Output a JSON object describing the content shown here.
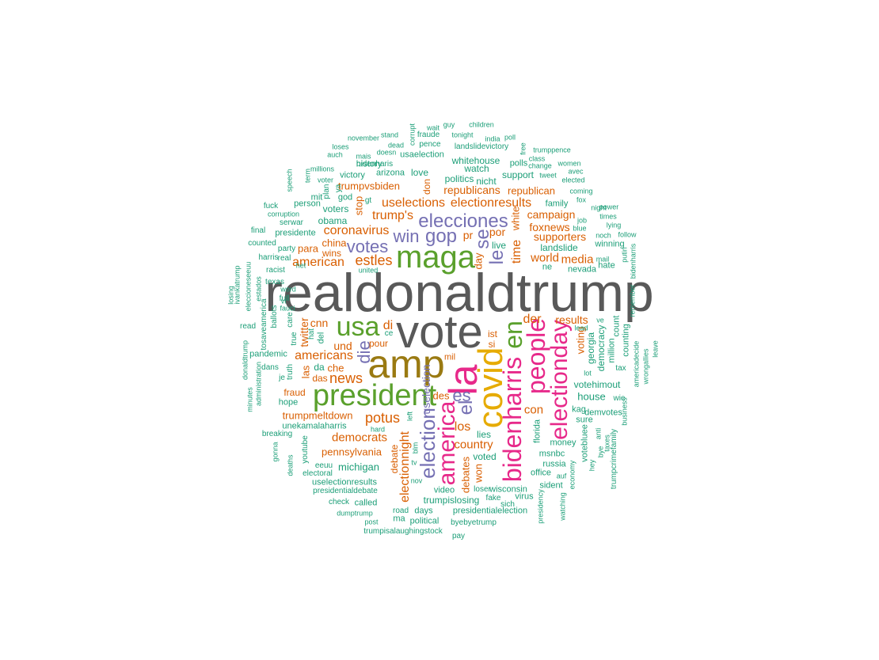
{
  "palette": {
    "gray": "#595959",
    "olive": "#9a7a12",
    "green": "#5aa02c",
    "pink": "#e7298a",
    "yellow": "#e6ab02",
    "purple": "#7570b3",
    "orange": "#d95f02",
    "teal": "#1b9e77"
  },
  "words": [
    {
      "text": "realdonaldtrump",
      "c": "gray"
    },
    {
      "text": "vote",
      "c": "gray"
    },
    {
      "text": "amp",
      "c": "olive"
    },
    {
      "text": "la",
      "c": "pink"
    },
    {
      "text": "president",
      "c": "green"
    },
    {
      "text": "maga",
      "c": "green"
    },
    {
      "text": "covid",
      "c": "yellow"
    },
    {
      "text": "bidenharris",
      "c": "pink"
    },
    {
      "text": "people",
      "c": "pink"
    },
    {
      "text": "electionday",
      "c": "pink"
    },
    {
      "text": "america",
      "c": "pink"
    },
    {
      "text": "en",
      "c": "green"
    },
    {
      "text": "usa",
      "c": "green"
    },
    {
      "text": "election",
      "c": "purple"
    },
    {
      "text": "elecciones",
      "c": "purple"
    },
    {
      "text": "gop",
      "c": "purple"
    },
    {
      "text": "se",
      "c": "purple"
    },
    {
      "text": "le",
      "c": "purple"
    },
    {
      "text": "el",
      "c": "purple"
    },
    {
      "text": "es",
      "c": "purple"
    },
    {
      "text": "votes",
      "c": "purple"
    },
    {
      "text": "win",
      "c": "purple"
    },
    {
      "text": "die",
      "c": "purple"
    },
    {
      "text": "news",
      "c": "orange"
    },
    {
      "text": "potus",
      "c": "orange"
    },
    {
      "text": "estles",
      "c": "orange"
    },
    {
      "text": "american",
      "c": "orange"
    },
    {
      "text": "americans",
      "c": "orange"
    },
    {
      "text": "coronavirus",
      "c": "orange"
    },
    {
      "text": "democrats",
      "c": "orange"
    },
    {
      "text": "country",
      "c": "orange"
    },
    {
      "text": "electionnight",
      "c": "orange"
    },
    {
      "text": "uselections",
      "c": "orange"
    },
    {
      "text": "electionresults",
      "c": "orange"
    },
    {
      "text": "trump's",
      "c": "orange"
    },
    {
      "text": "results",
      "c": "orange"
    },
    {
      "text": "time",
      "c": "orange"
    },
    {
      "text": "der",
      "c": "orange"
    },
    {
      "text": "los",
      "c": "orange"
    },
    {
      "text": "con",
      "c": "orange"
    },
    {
      "text": "world",
      "c": "orange"
    },
    {
      "text": "media",
      "c": "orange"
    },
    {
      "text": "campaign",
      "c": "orange"
    },
    {
      "text": "foxnews",
      "c": "orange"
    },
    {
      "text": "supporters",
      "c": "orange"
    },
    {
      "text": "republicans",
      "c": "orange"
    },
    {
      "text": "republican",
      "c": "orange"
    },
    {
      "text": "trumpvsbiden",
      "c": "orange"
    },
    {
      "text": "pennsylvania",
      "c": "orange"
    },
    {
      "text": "trumpmeltdown",
      "c": "orange"
    },
    {
      "text": "cnn",
      "c": "orange"
    },
    {
      "text": "twitter",
      "c": "orange"
    },
    {
      "text": "und",
      "c": "orange"
    },
    {
      "text": "che",
      "c": "orange"
    },
    {
      "text": "das",
      "c": "orange"
    },
    {
      "text": "las",
      "c": "orange"
    },
    {
      "text": "china",
      "c": "orange"
    },
    {
      "text": "wins",
      "c": "orange"
    },
    {
      "text": "para",
      "c": "orange"
    },
    {
      "text": "stop",
      "c": "orange"
    },
    {
      "text": "pr",
      "c": "orange"
    },
    {
      "text": "por",
      "c": "orange"
    },
    {
      "text": "di",
      "c": "orange"
    },
    {
      "text": "pour",
      "c": "orange"
    },
    {
      "text": "ist",
      "c": "orange"
    },
    {
      "text": "si",
      "c": "orange"
    },
    {
      "text": "day",
      "c": "orange"
    },
    {
      "text": "des",
      "c": "orange"
    },
    {
      "text": "debates",
      "c": "orange"
    },
    {
      "text": "debate",
      "c": "orange"
    },
    {
      "text": "won",
      "c": "orange"
    },
    {
      "text": "don",
      "c": "orange"
    },
    {
      "text": "fraud",
      "c": "orange"
    },
    {
      "text": "mil",
      "c": "orange"
    },
    {
      "text": "white",
      "c": "orange"
    },
    {
      "text": "voting",
      "c": "orange"
    },
    {
      "text": "uselection",
      "c": "purple"
    },
    {
      "text": "michigan",
      "c": "teal"
    },
    {
      "text": "voters",
      "c": "teal"
    },
    {
      "text": "obama",
      "c": "teal"
    },
    {
      "text": "live",
      "c": "teal"
    },
    {
      "text": "landslide",
      "c": "teal"
    },
    {
      "text": "nevada",
      "c": "teal"
    },
    {
      "text": "ne",
      "c": "teal"
    },
    {
      "text": "house",
      "c": "teal"
    },
    {
      "text": "votehimout",
      "c": "teal"
    },
    {
      "text": "georgia",
      "c": "teal"
    },
    {
      "text": "democracy",
      "c": "teal"
    },
    {
      "text": "count",
      "c": "teal"
    },
    {
      "text": "trumpislosing",
      "c": "teal"
    },
    {
      "text": "lies",
      "c": "teal"
    },
    {
      "text": "voted",
      "c": "teal"
    },
    {
      "text": "uselectionresults",
      "c": "teal"
    },
    {
      "text": "presidentialdebate",
      "c": "teal"
    },
    {
      "text": "presidentialelection",
      "c": "teal"
    },
    {
      "text": "trumpisalaughingstock",
      "c": "teal"
    },
    {
      "text": "byebyetrump",
      "c": "teal"
    },
    {
      "text": "unekamalaharris",
      "c": "teal"
    },
    {
      "text": "whitehouse",
      "c": "teal"
    },
    {
      "text": "politics",
      "c": "teal"
    },
    {
      "text": "watch",
      "c": "teal"
    },
    {
      "text": "nicht",
      "c": "teal"
    },
    {
      "text": "support",
      "c": "teal"
    },
    {
      "text": "polls",
      "c": "teal"
    },
    {
      "text": "love",
      "c": "teal"
    },
    {
      "text": "landslidevictory",
      "c": "teal"
    },
    {
      "text": "usaelection",
      "c": "teal"
    },
    {
      "text": "bidenharis",
      "c": "teal"
    },
    {
      "text": "arizona",
      "c": "teal"
    },
    {
      "text": "victory",
      "c": "teal"
    },
    {
      "text": "pence",
      "c": "teal"
    },
    {
      "text": "family",
      "c": "teal"
    },
    {
      "text": "winning",
      "c": "teal"
    },
    {
      "text": "hate",
      "c": "teal"
    },
    {
      "text": "russia",
      "c": "teal"
    },
    {
      "text": "msnbc",
      "c": "teal"
    },
    {
      "text": "florida",
      "c": "teal"
    },
    {
      "text": "kag",
      "c": "teal"
    },
    {
      "text": "wisconsin",
      "c": "teal"
    },
    {
      "text": "video",
      "c": "teal"
    },
    {
      "text": "called",
      "c": "teal"
    },
    {
      "text": "political",
      "c": "teal"
    },
    {
      "text": "pandemic",
      "c": "teal"
    },
    {
      "text": "presidente",
      "c": "teal"
    },
    {
      "text": "hope",
      "c": "teal"
    },
    {
      "text": "electoral",
      "c": "teal"
    },
    {
      "text": "eeuu",
      "c": "teal"
    },
    {
      "text": "millions",
      "c": "teal"
    },
    {
      "text": "person",
      "c": "teal"
    },
    {
      "text": "mit",
      "c": "teal"
    },
    {
      "text": "god",
      "c": "teal"
    },
    {
      "text": "party",
      "c": "teal"
    },
    {
      "text": "serwar",
      "c": "teal"
    },
    {
      "text": "corruption",
      "c": "teal"
    },
    {
      "text": "fuck",
      "c": "teal"
    },
    {
      "text": "final",
      "c": "teal"
    },
    {
      "text": "counted",
      "c": "teal"
    },
    {
      "text": "harris",
      "c": "teal"
    },
    {
      "text": "racist",
      "c": "teal"
    },
    {
      "text": "texas",
      "c": "teal"
    },
    {
      "text": "read",
      "c": "teal"
    },
    {
      "text": "tosaveamerica",
      "c": "teal"
    },
    {
      "text": "dans",
      "c": "teal"
    },
    {
      "text": "je",
      "c": "teal"
    },
    {
      "text": "breaking",
      "c": "teal"
    },
    {
      "text": "youtube",
      "c": "teal"
    },
    {
      "text": "deaths",
      "c": "teal"
    },
    {
      "text": "gonna",
      "c": "teal"
    },
    {
      "text": "check",
      "c": "teal"
    },
    {
      "text": "dumptrump",
      "c": "teal"
    },
    {
      "text": "post",
      "c": "teal"
    },
    {
      "text": "road",
      "c": "teal"
    },
    {
      "text": "days",
      "c": "teal"
    },
    {
      "text": "ma",
      "c": "teal"
    },
    {
      "text": "pay",
      "c": "teal"
    },
    {
      "text": "fake",
      "c": "teal"
    },
    {
      "text": "loser",
      "c": "teal"
    },
    {
      "text": "sich",
      "c": "teal"
    },
    {
      "text": "virus",
      "c": "teal"
    },
    {
      "text": "office",
      "c": "teal"
    },
    {
      "text": "sident",
      "c": "teal"
    },
    {
      "text": "money",
      "c": "teal"
    },
    {
      "text": "votebluee",
      "c": "teal"
    },
    {
      "text": "trumpcrimefamily",
      "c": "teal"
    },
    {
      "text": "business",
      "c": "teal"
    },
    {
      "text": "wie",
      "c": "teal"
    },
    {
      "text": "americadecide",
      "c": "teal"
    },
    {
      "text": "wrongallies",
      "c": "teal"
    },
    {
      "text": "leave",
      "c": "teal"
    },
    {
      "text": "counting",
      "c": "teal"
    },
    {
      "text": "million",
      "c": "teal"
    },
    {
      "text": "tax",
      "c": "teal"
    },
    {
      "text": "mail",
      "c": "teal"
    },
    {
      "text": "putin",
      "c": "teal"
    },
    {
      "text": "bidenharris",
      "c": "teal"
    },
    {
      "text": "remember",
      "c": "teal"
    },
    {
      "text": "follow",
      "c": "teal"
    },
    {
      "text": "noch",
      "c": "teal"
    },
    {
      "text": "blue",
      "c": "teal"
    },
    {
      "text": "lying",
      "c": "teal"
    },
    {
      "text": "times",
      "c": "teal"
    },
    {
      "text": "power",
      "c": "teal"
    },
    {
      "text": "night",
      "c": "teal"
    },
    {
      "text": "job",
      "c": "teal"
    },
    {
      "text": "fox",
      "c": "teal"
    },
    {
      "text": "coming",
      "c": "teal"
    },
    {
      "text": "elected",
      "c": "teal"
    },
    {
      "text": "avec",
      "c": "teal"
    },
    {
      "text": "women",
      "c": "teal"
    },
    {
      "text": "tweet",
      "c": "teal"
    },
    {
      "text": "change",
      "c": "teal"
    },
    {
      "text": "class",
      "c": "teal"
    },
    {
      "text": "trumppence",
      "c": "teal"
    },
    {
      "text": "free",
      "c": "teal"
    },
    {
      "text": "poll",
      "c": "teal"
    },
    {
      "text": "india",
      "c": "teal"
    },
    {
      "text": "children",
      "c": "teal"
    },
    {
      "text": "tonight",
      "c": "teal"
    },
    {
      "text": "guy",
      "c": "teal"
    },
    {
      "text": "wait",
      "c": "teal"
    },
    {
      "text": "fraude",
      "c": "teal"
    },
    {
      "text": "corrupt",
      "c": "teal"
    },
    {
      "text": "stand",
      "c": "teal"
    },
    {
      "text": "dead",
      "c": "teal"
    },
    {
      "text": "doesn",
      "c": "teal"
    },
    {
      "text": "november",
      "c": "teal"
    },
    {
      "text": "loses",
      "c": "teal"
    },
    {
      "text": "auch",
      "c": "teal"
    },
    {
      "text": "mais",
      "c": "teal"
    },
    {
      "text": "history",
      "c": "teal"
    },
    {
      "text": "term",
      "c": "teal"
    },
    {
      "text": "speech",
      "c": "teal"
    },
    {
      "text": "voter",
      "c": "teal"
    },
    {
      "text": "real",
      "c": "teal"
    },
    {
      "text": "het",
      "c": "teal"
    },
    {
      "text": "word",
      "c": "teal"
    },
    {
      "text": "ballots",
      "c": "teal"
    },
    {
      "text": "care",
      "c": "teal"
    },
    {
      "text": "true",
      "c": "teal"
    },
    {
      "text": "truth",
      "c": "teal"
    },
    {
      "text": "losing",
      "c": "teal"
    },
    {
      "text": "ivankatrump",
      "c": "teal"
    },
    {
      "text": "eleccioneseeuu",
      "c": "teal"
    },
    {
      "text": "donaldtrump",
      "c": "teal"
    },
    {
      "text": "minutes",
      "c": "teal"
    },
    {
      "text": "administration",
      "c": "teal"
    },
    {
      "text": "estados",
      "c": "teal"
    },
    {
      "text": "vi",
      "c": "teal"
    },
    {
      "text": "united",
      "c": "teal"
    },
    {
      "text": "hard",
      "c": "teal"
    },
    {
      "text": "blm",
      "c": "teal"
    },
    {
      "text": "tv",
      "c": "teal"
    },
    {
      "text": "nov",
      "c": "teal"
    },
    {
      "text": "left",
      "c": "teal"
    },
    {
      "text": "ce",
      "c": "teal"
    },
    {
      "text": "plan",
      "c": "teal"
    },
    {
      "text": "ya",
      "c": "teal"
    },
    {
      "text": "gt",
      "c": "teal"
    },
    {
      "text": "da",
      "c": "teal"
    },
    {
      "text": "del",
      "c": "teal"
    },
    {
      "text": "hat",
      "c": "teal"
    },
    {
      "text": "auf",
      "c": "teal"
    },
    {
      "text": "economy",
      "c": "teal"
    },
    {
      "text": "watching",
      "c": "teal"
    },
    {
      "text": "presidency",
      "c": "teal"
    },
    {
      "text": "hey",
      "c": "teal"
    },
    {
      "text": "bye",
      "c": "teal"
    },
    {
      "text": "anti",
      "c": "teal"
    },
    {
      "text": "taxes",
      "c": "teal"
    },
    {
      "text": "demvotes",
      "c": "teal"
    },
    {
      "text": "sure",
      "c": "teal"
    },
    {
      "text": "lead",
      "c": "teal"
    },
    {
      "text": "lot",
      "c": "teal"
    },
    {
      "text": "ve",
      "c": "teal"
    },
    {
      "text": "fauci",
      "c": "teal"
    },
    {
      "text": "full",
      "c": "teal"
    }
  ]
}
